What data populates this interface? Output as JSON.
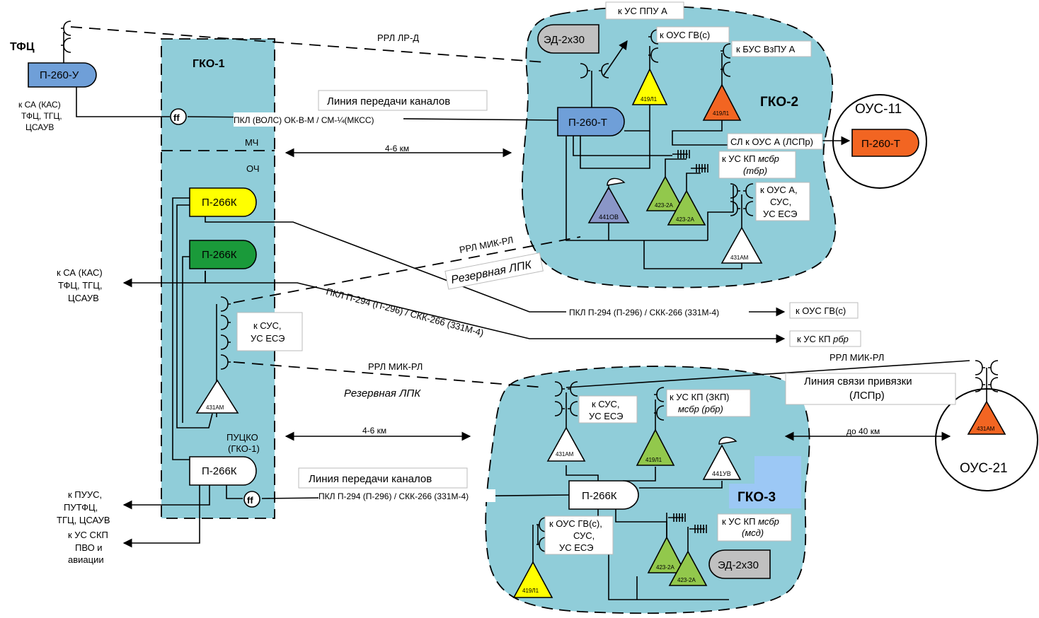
{
  "colors": {
    "zone": "#90cdd9",
    "pill_blue": "#6f9fd8",
    "yellow": "#ffff00",
    "dark_green": "#1a9a3a",
    "orange": "#f26522",
    "light_green": "#92c84c",
    "periwinkle": "#8a96c8",
    "gray": "#c0c0c0",
    "light_blue_block": "#9cc8f5"
  },
  "icons": [
    "antenna-fork-icon",
    "dish-antenna-icon",
    "cable-coupler-icon",
    "arrow-icon"
  ],
  "gko1": {
    "title": "ГКО-1",
    "mch": "МЧ",
    "och": "ОЧ",
    "puczko": [
      "ПУЦКО",
      "(ГКО-1)"
    ],
    "p266k_top": "П-266К",
    "p266k_mid": "П-266К",
    "p266k_bottom": "П-266К",
    "k_sus": [
      "к СУС,",
      "УС ЕСЭ"
    ],
    "tri_431": "431АМ"
  },
  "tfc": {
    "title": "ТФЦ",
    "pill": "П-260-У",
    "note": [
      "к СА (КАС)",
      "ТФЦ, ТГЦ,",
      "ЦСАУВ"
    ]
  },
  "left_labels": {
    "ksa": [
      "к СА (КАС)",
      "ТФЦ, ТГЦ,",
      "ЦСАУВ"
    ],
    "kpuus": [
      "к ПУУС,",
      "ПУТФЦ,",
      "ТГЦ, ЦСАУВ"
    ],
    "kus_skp": [
      "к УС СКП",
      "ПВО и",
      "авиации"
    ]
  },
  "links": {
    "rrl_lrd": "РРЛ ЛР-Д",
    "liniya_top": "Линия передачи каналов",
    "pkl_volс": "ПКЛ (ВОЛС) ОК-В-М / СМ-¼(МКСС)",
    "dist_top": "4-6 км",
    "rrl_mikrl_1": "РРЛ МИК-РЛ",
    "rezerv_1": "Резервная ЛПК",
    "pkl_p294_a": "ПКЛ П-294 (П-296) / СКК-266 (331М-4)",
    "k_ous_gv": "к ОУС ГВ(с)",
    "pkl_p294_b": "ПКЛ П-294 (П-296) / СКК-266 (331М-4)",
    "k_us_kp_rbr": "к УС КП ",
    "k_us_kp_rbr_i": "рбр",
    "rrl_mikrl_2": "РРЛ МИК-РЛ",
    "rezerv_2": "Резервная ЛПК",
    "dist_bottom": "4-6 км",
    "liniya_bottom": "Линия передачи каналов",
    "pkl_p294_c": "ПКЛ П-294 (П-296) / СКК-266 (331М-4)",
    "rrl_mikrl_3": "РРЛ МИК-РЛ",
    "liniya_svyazi": [
      "Линия связи привязки",
      "(ЛСПр)"
    ],
    "do40": "до 40 км"
  },
  "gko2": {
    "title": "ГКО-2",
    "ed": "ЭД-2х30",
    "k_us_ppu": "к УС ППУ А",
    "k_ous_gvs": "к ОУС ГВ(с)",
    "k_bus": "к БУС ВзПУ А",
    "p260t": "П-260-Т",
    "tri_419_y": "419Л1",
    "tri_419_o": "419Л1",
    "sl_k_ous": "СЛ к ОУС А (ЛСПр)",
    "k_us_kp_1": "к УС КП ",
    "k_us_kp_1_i": "мсбр",
    "k_us_kp_1_sub": "(тбр)",
    "tri_441": "441ОВ",
    "tri_423_a": "423-2А",
    "tri_423_b": "423-2А",
    "k_ous_a": [
      "к ОУС А,",
      "СУС,",
      "УС ЕСЭ"
    ],
    "tri_431": "431АМ"
  },
  "ous11": {
    "title": "ОУС-11",
    "pill": "П-260-Т"
  },
  "gko3": {
    "title": "ГКО-3",
    "k_sus": [
      "к СУС,",
      "УС ЕСЭ"
    ],
    "k_us_kp_zkp": "к УС КП (ЗКП)",
    "k_us_kp_zkp_sub": "мсбр (рбр)",
    "tri_431": "431АМ",
    "tri_419_a": "419Л1",
    "tri_441": "441УВ",
    "p266k": "П-266К",
    "k_ous_gvs": [
      "к ОУС ГВ(с),",
      "СУС,",
      "УС ЕСЭ"
    ],
    "k_us_kp_msd": "к УС КП ",
    "k_us_kp_msd_i": "мсбр",
    "k_us_kp_msd_sub": "(мсд)",
    "tri_419_b": "419Л1",
    "tri_423_a": "423-2А",
    "tri_423_b": "423-2А",
    "ed": "ЭД-2х30"
  },
  "ous21": {
    "title": "ОУС-21",
    "tri": "431АМ"
  }
}
